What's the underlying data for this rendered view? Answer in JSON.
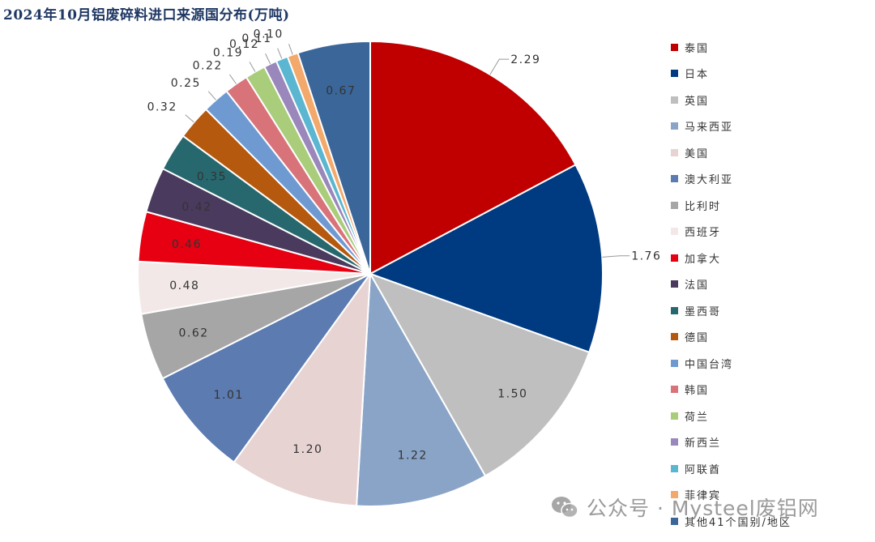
{
  "chart_data": {
    "type": "pie",
    "title": "2024年10月铝废碎料进口来源国分布(万吨)",
    "categories": [
      "泰国",
      "日本",
      "英国",
      "马来西亚",
      "美国",
      "澳大利亚",
      "比利时",
      "西班牙",
      "加拿大",
      "法国",
      "墨西哥",
      "德国",
      "中国台湾",
      "韩国",
      "荷兰",
      "新西兰",
      "阿联酋",
      "菲律宾",
      "其他41个国别/地区"
    ],
    "values": [
      2.29,
      1.76,
      1.5,
      1.22,
      1.2,
      1.01,
      0.62,
      0.48,
      0.46,
      0.42,
      0.35,
      0.32,
      0.25,
      0.22,
      0.19,
      0.12,
      0.11,
      0.1,
      0.67
    ],
    "labels": [
      "2.29",
      "1.76",
      "1.50",
      "1.22",
      "1.20",
      "1.01",
      "0.62",
      "0.48",
      "0.46",
      "0.42",
      "0.35",
      "0.32",
      "0.25",
      "0.22",
      "0.19",
      "0.12",
      "0.11",
      "0.10",
      "0.67"
    ],
    "colors": [
      "#c00000",
      "#003a80",
      "#bfbfbf",
      "#8aa4c8",
      "#e8d3d3",
      "#5b7bb1",
      "#a6a6a6",
      "#f3e8e8",
      "#e60012",
      "#4a3a5e",
      "#27686e",
      "#b5590f",
      "#6f9ad1",
      "#d9737a",
      "#a9cd7a",
      "#9a87bb",
      "#5bb6d1",
      "#f2a96b",
      "#3a6699"
    ],
    "legend_position": "right"
  },
  "watermark": {
    "text": "公众号 · Mysteel废铝网",
    "icon": "wechat-icon"
  }
}
